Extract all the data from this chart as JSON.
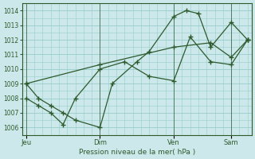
{
  "background_color": "#cce8ea",
  "grid_color": "#99cccc",
  "line_color": "#2d5a2d",
  "xlabel": "Pression niveau de la mer( hPa )",
  "yticks": [
    1006,
    1007,
    1008,
    1009,
    1010,
    1011,
    1012,
    1013,
    1014
  ],
  "ylim": [
    1005.5,
    1014.5
  ],
  "xtick_labels": [
    "Jeu",
    "Dim",
    "Ven",
    "Sam"
  ],
  "xtick_positions": [
    0,
    36,
    72,
    100
  ],
  "xlim": [
    -2,
    110
  ],
  "series": [
    {
      "x": [
        0,
        6,
        12,
        18,
        24,
        36,
        42,
        54,
        60,
        72,
        78,
        84,
        90,
        100,
        108
      ],
      "y": [
        1009,
        1008,
        1007.5,
        1007,
        1006.5,
        1006,
        1009.0,
        1010.5,
        1011.2,
        1013.6,
        1014.0,
        1013.8,
        1011.5,
        1013.2,
        1012.0
      ]
    },
    {
      "x": [
        0,
        6,
        12,
        18,
        24,
        36,
        48,
        60,
        72,
        80,
        90,
        100,
        108
      ],
      "y": [
        1008,
        1007.5,
        1007.0,
        1006.2,
        1008.0,
        1010.0,
        1010.5,
        1009.5,
        1009.2,
        1012.2,
        1010.5,
        1010.3,
        1012.0
      ]
    },
    {
      "x": [
        0,
        36,
        72,
        90,
        100,
        108
      ],
      "y": [
        1009,
        1010.3,
        1011.5,
        1011.8,
        1010.8,
        1012.0
      ]
    }
  ]
}
